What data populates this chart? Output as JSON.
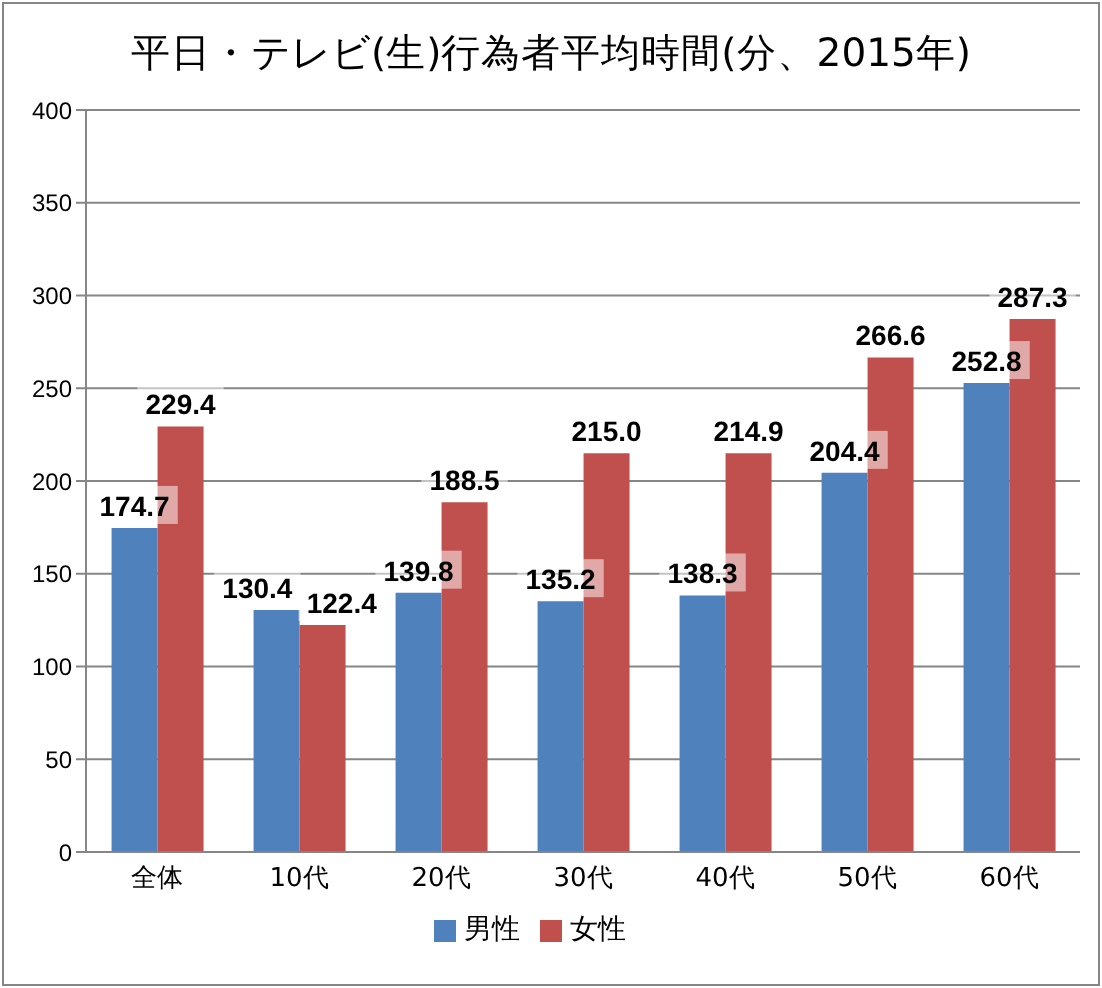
{
  "chart_data": {
    "type": "bar",
    "title": "平日・テレビ(生)行為者平均時間(分、2015年)",
    "categories": [
      "全体",
      "10代",
      "20代",
      "30代",
      "40代",
      "50代",
      "60代"
    ],
    "series": [
      {
        "name": "男性",
        "color": "#4f81bd",
        "values": [
          174.7,
          130.4,
          139.8,
          135.2,
          138.3,
          204.4,
          252.8
        ],
        "value_labels": [
          "174.7",
          "130.4",
          "139.8",
          "135.2",
          "138.3",
          "204.4",
          "252.8"
        ]
      },
      {
        "name": "女性",
        "color": "#c0504d",
        "values": [
          229.4,
          122.4,
          188.5,
          215.0,
          214.9,
          266.6,
          287.3
        ],
        "value_labels": [
          "229.4",
          "122.4",
          "188.5",
          "215.0",
          "214.9",
          "266.6",
          "287.3"
        ]
      }
    ],
    "ylim": [
      0,
      400
    ],
    "yticks": [
      0,
      50,
      100,
      150,
      200,
      250,
      300,
      350,
      400
    ],
    "grid": "y",
    "legend": "bottom"
  }
}
